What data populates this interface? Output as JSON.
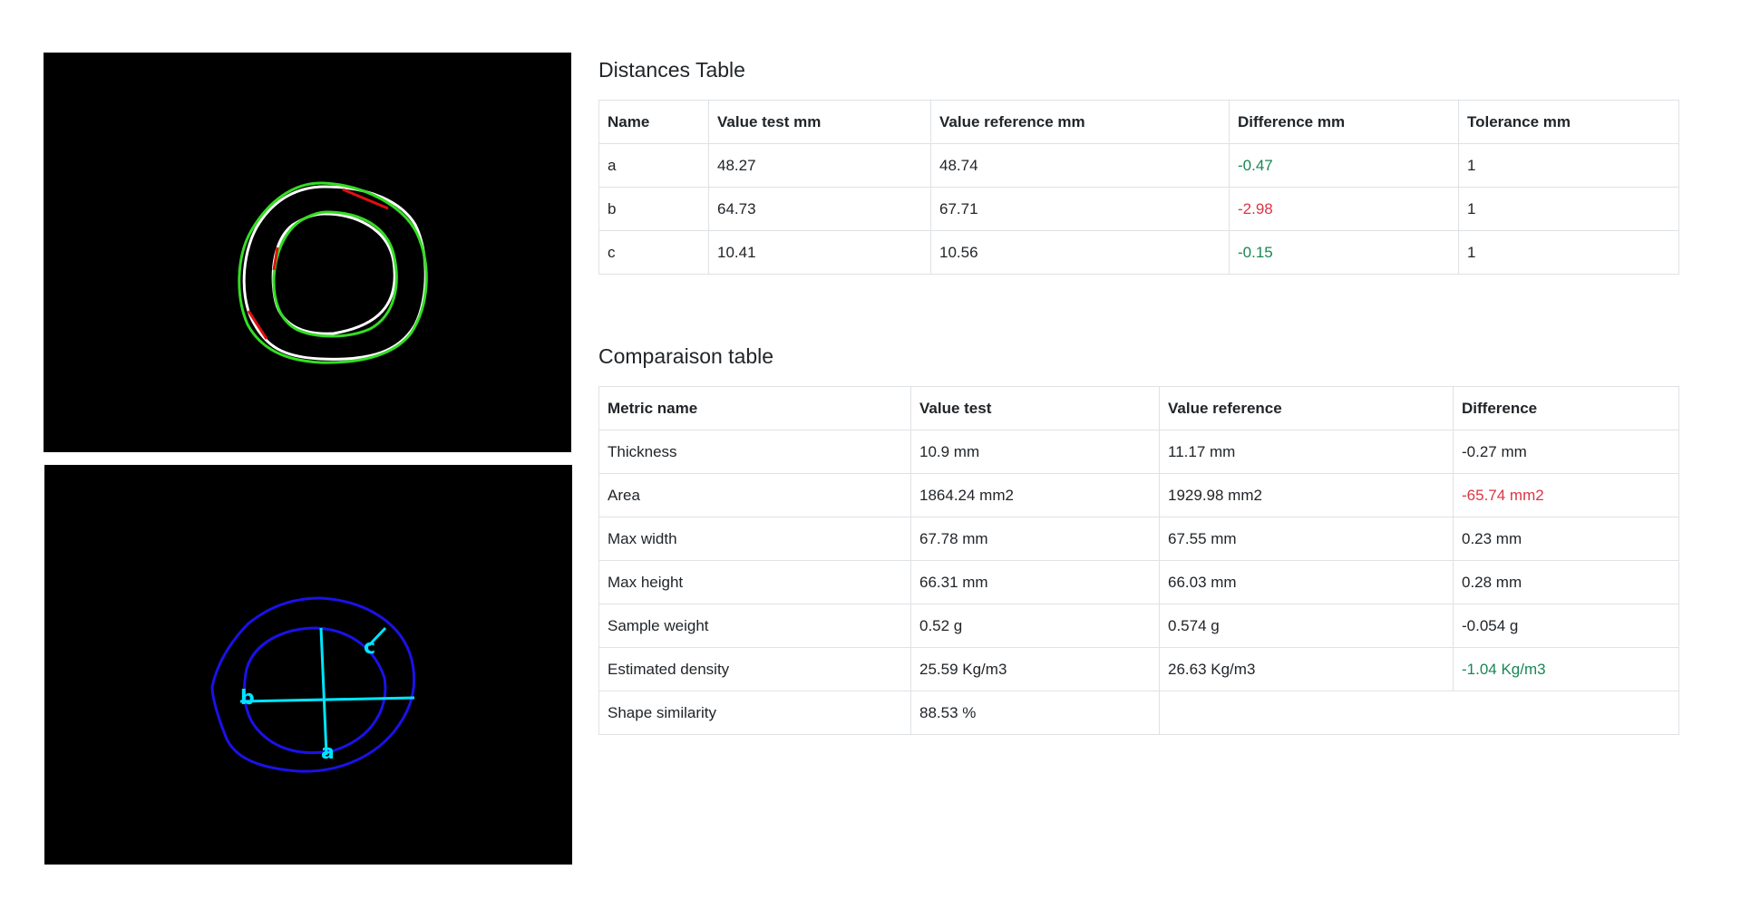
{
  "distances": {
    "title": "Distances Table",
    "columns": [
      "Name",
      "Value test mm",
      "Value reference mm",
      "Difference mm",
      "Tolerance mm"
    ],
    "rows": [
      {
        "name": "a",
        "test": "48.27",
        "reference": "48.74",
        "difference": "-0.47",
        "tolerance": "1",
        "difference_status": "ok"
      },
      {
        "name": "b",
        "test": "64.73",
        "reference": "67.71",
        "difference": "-2.98",
        "tolerance": "1",
        "difference_status": "fail"
      },
      {
        "name": "c",
        "test": "10.41",
        "reference": "10.56",
        "difference": "-0.15",
        "tolerance": "1",
        "difference_status": "ok"
      }
    ]
  },
  "comparison": {
    "title": "Comparaison table",
    "columns": [
      "Metric name",
      "Value test",
      "Value reference",
      "Difference"
    ],
    "rows": [
      {
        "metric": "Thickness",
        "test": "10.9 mm",
        "reference": "11.17 mm",
        "difference": "-0.27 mm",
        "difference_status": "neutral"
      },
      {
        "metric": "Area",
        "test": "1864.24 mm2",
        "reference": "1929.98 mm2",
        "difference": "-65.74 mm2",
        "difference_status": "fail"
      },
      {
        "metric": "Max width",
        "test": "67.78 mm",
        "reference": "67.55 mm",
        "difference": "0.23 mm",
        "difference_status": "neutral"
      },
      {
        "metric": "Max height",
        "test": "66.31 mm",
        "reference": "66.03 mm",
        "difference": "0.28 mm",
        "difference_status": "neutral"
      },
      {
        "metric": "Sample weight",
        "test": "0.52 g",
        "reference": "0.574 g",
        "difference": "-0.054 g",
        "difference_status": "neutral"
      },
      {
        "metric": "Estimated density",
        "test": "25.59 Kg/m3",
        "reference": "26.63 Kg/m3",
        "difference": "-1.04 Kg/m3",
        "difference_status": "ok"
      },
      {
        "metric": "Shape similarity",
        "test": "88.53 %",
        "reference": "",
        "difference": "",
        "difference_status": "neutral",
        "merged_reference": true
      }
    ]
  },
  "images": {
    "overlay": {
      "labels": []
    },
    "measurement": {
      "labels": [
        "a",
        "b",
        "c"
      ]
    }
  },
  "colors": {
    "ok": "#198754",
    "fail": "#dc3545",
    "outline_green": "#33dd22",
    "outline_white": "#ffffff",
    "outline_red": "#dd1111",
    "contour_blue": "#1a12e8",
    "measure_cyan": "#00e5ff"
  }
}
